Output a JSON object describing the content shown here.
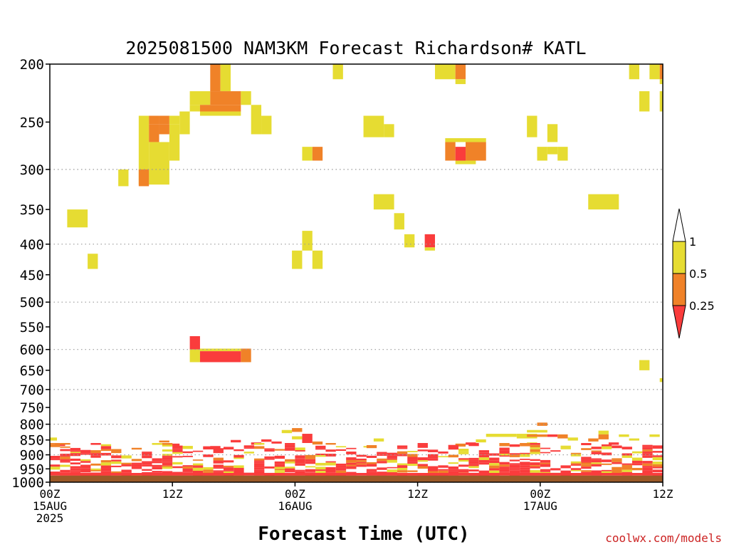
{
  "chart_data": {
    "type": "heatmap",
    "title": "2025081500 NAM3KM Forecast Richardson# KATL",
    "xlabel": "Forecast Time (UTC)",
    "ylabel": "",
    "credit": "coolwx.com/models",
    "x_unit": "forecast hour",
    "xlim": [
      0,
      60
    ],
    "y_unit": "hPa",
    "ylim": [
      1000,
      200
    ],
    "y_scale": "log",
    "y_ticks": [
      200,
      250,
      300,
      350,
      400,
      450,
      500,
      550,
      600,
      650,
      700,
      750,
      800,
      850,
      900,
      950,
      1000
    ],
    "grid_levels": [
      300,
      400,
      500,
      600,
      700,
      800,
      900,
      1000
    ],
    "x_ticks": [
      {
        "hour": 0,
        "lines": [
          "00Z",
          "15AUG",
          "2025"
        ]
      },
      {
        "hour": 12,
        "lines": [
          "12Z"
        ]
      },
      {
        "hour": 24,
        "lines": [
          "00Z",
          "16AUG"
        ]
      },
      {
        "hour": 36,
        "lines": [
          "12Z"
        ]
      },
      {
        "hour": 48,
        "lines": [
          "00Z",
          "17AUG"
        ]
      },
      {
        "hour": 60,
        "lines": [
          "12Z"
        ]
      }
    ],
    "colorbar": {
      "labels": [
        "1",
        "0.5",
        "0.25"
      ],
      "colors": {
        "above_1": "#ffffff",
        "0.5-1": "#e6dc32",
        "0.25-0.5": "#f08228",
        "below_0.25": "#fa3c3c"
      },
      "placement": "right"
    },
    "colors": {
      "yellow": "#e6dc32",
      "orange": "#f08228",
      "red": "#fa3c3c",
      "ground": "#9b5a28"
    },
    "ground_level_hpa": 975,
    "cells": [
      {
        "t0": 15.7,
        "t1": 16.7,
        "p0": 200,
        "p1": 222,
        "c": "orange"
      },
      {
        "t0": 16.7,
        "t1": 17.7,
        "p0": 200,
        "p1": 222,
        "c": "yellow"
      },
      {
        "t0": 27.7,
        "t1": 28.7,
        "p0": 200,
        "p1": 212,
        "c": "yellow"
      },
      {
        "t0": 37.7,
        "t1": 39.7,
        "p0": 200,
        "p1": 212,
        "c": "yellow"
      },
      {
        "t0": 39.7,
        "t1": 40.7,
        "p0": 200,
        "p1": 212,
        "c": "orange"
      },
      {
        "t0": 39.7,
        "t1": 40.7,
        "p0": 212,
        "p1": 216,
        "c": "yellow"
      },
      {
        "t0": 56.7,
        "t1": 57.7,
        "p0": 200,
        "p1": 212,
        "c": "yellow"
      },
      {
        "t0": 58.7,
        "t1": 59.7,
        "p0": 200,
        "p1": 212,
        "c": "yellow"
      },
      {
        "t0": 59.7,
        "t1": 60,
        "p0": 200,
        "p1": 212,
        "c": "orange"
      },
      {
        "t0": 59.7,
        "t1": 60,
        "p0": 212,
        "p1": 216,
        "c": "yellow"
      },
      {
        "t0": 13.7,
        "t1": 15.7,
        "p0": 222,
        "p1": 234,
        "c": "yellow"
      },
      {
        "t0": 15.7,
        "t1": 18.7,
        "p0": 222,
        "p1": 234,
        "c": "orange"
      },
      {
        "t0": 18.7,
        "t1": 19.7,
        "p0": 222,
        "p1": 234,
        "c": "yellow"
      },
      {
        "t0": 13.7,
        "t1": 14.7,
        "p0": 234,
        "p1": 240,
        "c": "yellow"
      },
      {
        "t0": 14.7,
        "t1": 17.7,
        "p0": 234,
        "p1": 240,
        "c": "orange"
      },
      {
        "t0": 17.7,
        "t1": 18.7,
        "p0": 234,
        "p1": 240,
        "c": "orange"
      },
      {
        "t0": 14.7,
        "t1": 18.7,
        "p0": 240,
        "p1": 244,
        "c": "yellow"
      },
      {
        "t0": 57.7,
        "t1": 58.7,
        "p0": 222,
        "p1": 240,
        "c": "yellow"
      },
      {
        "t0": 59.7,
        "t1": 60,
        "p0": 222,
        "p1": 240,
        "c": "yellow"
      },
      {
        "t0": 12.7,
        "t1": 13.7,
        "p0": 240,
        "p1": 262,
        "c": "yellow"
      },
      {
        "t0": 19.7,
        "t1": 20.7,
        "p0": 234,
        "p1": 262,
        "c": "yellow"
      },
      {
        "t0": 20.7,
        "t1": 21.7,
        "p0": 244,
        "p1": 262,
        "c": "yellow"
      },
      {
        "t0": 8.7,
        "t1": 9.7,
        "p0": 244,
        "p1": 318,
        "c": "yellow"
      },
      {
        "t0": 9.7,
        "t1": 10.7,
        "p0": 244,
        "p1": 252,
        "c": "orange"
      },
      {
        "t0": 10.7,
        "t1": 11.7,
        "p0": 244,
        "p1": 252,
        "c": "orange"
      },
      {
        "t0": 11.7,
        "t1": 12.7,
        "p0": 252,
        "p1": 262,
        "c": "yellow"
      },
      {
        "t0": 9.7,
        "t1": 10.7,
        "p0": 252,
        "p1": 270,
        "c": "orange"
      },
      {
        "t0": 10.7,
        "t1": 11.7,
        "p0": 252,
        "p1": 262,
        "c": "orange"
      },
      {
        "t0": 11.7,
        "t1": 12.7,
        "p0": 244,
        "p1": 252,
        "c": "yellow"
      },
      {
        "t0": 9.7,
        "t1": 11.7,
        "p0": 270,
        "p1": 318,
        "c": "yellow"
      },
      {
        "t0": 11.7,
        "t1": 12.7,
        "p0": 262,
        "p1": 290,
        "c": "yellow"
      },
      {
        "t0": 8.7,
        "t1": 9.7,
        "p0": 300,
        "p1": 320,
        "c": "orange"
      },
      {
        "t0": 6.7,
        "t1": 7.7,
        "p0": 300,
        "p1": 320,
        "c": "yellow"
      },
      {
        "t0": 30.7,
        "t1": 32.7,
        "p0": 244,
        "p1": 265,
        "c": "yellow"
      },
      {
        "t0": 32.7,
        "t1": 33.7,
        "p0": 252,
        "p1": 265,
        "c": "yellow"
      },
      {
        "t0": 46.7,
        "t1": 47.7,
        "p0": 244,
        "p1": 265,
        "c": "yellow"
      },
      {
        "t0": 48.7,
        "t1": 49.7,
        "p0": 252,
        "p1": 270,
        "c": "yellow"
      },
      {
        "t0": 47.7,
        "t1": 48.7,
        "p0": 275,
        "p1": 290,
        "c": "yellow"
      },
      {
        "t0": 48.7,
        "t1": 49.7,
        "p0": 275,
        "p1": 283,
        "c": "yellow"
      },
      {
        "t0": 49.7,
        "t1": 50.7,
        "p0": 275,
        "p1": 290,
        "c": "yellow"
      },
      {
        "t0": 24.7,
        "t1": 25.7,
        "p0": 275,
        "p1": 290,
        "c": "yellow"
      },
      {
        "t0": 25.7,
        "t1": 26.7,
        "p0": 275,
        "p1": 290,
        "c": "orange"
      },
      {
        "t0": 38.7,
        "t1": 39.7,
        "p0": 270,
        "p1": 290,
        "c": "orange"
      },
      {
        "t0": 39.7,
        "t1": 40.7,
        "p0": 275,
        "p1": 290,
        "c": "red"
      },
      {
        "t0": 40.7,
        "t1": 42.7,
        "p0": 270,
        "p1": 290,
        "c": "orange"
      },
      {
        "t0": 38.7,
        "t1": 42.7,
        "p0": 266,
        "p1": 270,
        "c": "yellow"
      },
      {
        "t0": 39.7,
        "t1": 41.7,
        "p0": 290,
        "p1": 294,
        "c": "yellow"
      },
      {
        "t0": 31.7,
        "t1": 33.7,
        "p0": 330,
        "p1": 350,
        "c": "yellow"
      },
      {
        "t0": 52.7,
        "t1": 55.7,
        "p0": 330,
        "p1": 350,
        "c": "yellow"
      },
      {
        "t0": 1.7,
        "t1": 3.7,
        "p0": 350,
        "p1": 375,
        "c": "yellow"
      },
      {
        "t0": 33.7,
        "t1": 34.7,
        "p0": 355,
        "p1": 378,
        "c": "yellow"
      },
      {
        "t0": 34.7,
        "t1": 35.7,
        "p0": 385,
        "p1": 405,
        "c": "yellow"
      },
      {
        "t0": 36.7,
        "t1": 37.7,
        "p0": 385,
        "p1": 405,
        "c": "red"
      },
      {
        "t0": 36.7,
        "t1": 37.7,
        "p0": 405,
        "p1": 410,
        "c": "yellow"
      },
      {
        "t0": 24.7,
        "t1": 25.7,
        "p0": 380,
        "p1": 410,
        "c": "yellow"
      },
      {
        "t0": 23.7,
        "t1": 24.7,
        "p0": 410,
        "p1": 440,
        "c": "yellow"
      },
      {
        "t0": 25.7,
        "t1": 26.7,
        "p0": 410,
        "p1": 440,
        "c": "yellow"
      },
      {
        "t0": 3.7,
        "t1": 4.7,
        "p0": 415,
        "p1": 440,
        "c": "yellow"
      },
      {
        "t0": 13.7,
        "t1": 14.7,
        "p0": 570,
        "p1": 600,
        "c": "red"
      },
      {
        "t0": 13.7,
        "t1": 14.7,
        "p0": 600,
        "p1": 630,
        "c": "yellow"
      },
      {
        "t0": 14.7,
        "t1": 18.7,
        "p0": 598,
        "p1": 604,
        "c": "yellow"
      },
      {
        "t0": 14.7,
        "t1": 18.7,
        "p0": 604,
        "p1": 630,
        "c": "red"
      },
      {
        "t0": 18.7,
        "t1": 19.7,
        "p0": 598,
        "p1": 630,
        "c": "orange"
      },
      {
        "t0": 57.7,
        "t1": 58.7,
        "p0": 625,
        "p1": 650,
        "c": "yellow"
      },
      {
        "t0": 59.7,
        "t1": 60,
        "p0": 670,
        "p1": 680,
        "c": "yellow"
      },
      {
        "t0": 22.7,
        "t1": 23.7,
        "p0": 818,
        "p1": 828,
        "c": "yellow"
      },
      {
        "t0": 23.7,
        "t1": 24.7,
        "p0": 812,
        "p1": 824,
        "c": "orange"
      },
      {
        "t0": 24.7,
        "t1": 25.7,
        "p0": 830,
        "p1": 860,
        "c": "red"
      },
      {
        "t0": 23.7,
        "t1": 24.7,
        "p0": 838,
        "p1": 848,
        "c": "yellow"
      },
      {
        "t0": 25.7,
        "t1": 26.7,
        "p0": 855,
        "p1": 865,
        "c": "orange"
      },
      {
        "t0": 31.7,
        "t1": 32.7,
        "p0": 845,
        "p1": 855,
        "c": "yellow"
      },
      {
        "t0": 30.7,
        "t1": 31.7,
        "p0": 870,
        "p1": 875,
        "c": "yellow"
      },
      {
        "t0": 41.7,
        "t1": 42.7,
        "p0": 848,
        "p1": 858,
        "c": "yellow"
      },
      {
        "t0": 40.7,
        "t1": 41.7,
        "p0": 858,
        "p1": 866,
        "c": "red"
      },
      {
        "t0": 39.7,
        "t1": 40.7,
        "p0": 862,
        "p1": 872,
        "c": "orange"
      },
      {
        "t0": 42.7,
        "t1": 45.7,
        "p0": 830,
        "p1": 840,
        "c": "yellow"
      },
      {
        "t0": 45.7,
        "t1": 47.7,
        "p0": 830,
        "p1": 845,
        "c": "yellow"
      },
      {
        "t0": 47.7,
        "t1": 48.7,
        "p0": 795,
        "p1": 805,
        "c": "orange"
      },
      {
        "t0": 46.7,
        "t1": 47.7,
        "p0": 818,
        "p1": 826,
        "c": "yellow"
      },
      {
        "t0": 47.7,
        "t1": 48.7,
        "p0": 818,
        "p1": 826,
        "c": "yellow"
      },
      {
        "t0": 46.7,
        "t1": 48.7,
        "p0": 832,
        "p1": 840,
        "c": "orange"
      },
      {
        "t0": 48.7,
        "t1": 49.7,
        "p0": 832,
        "p1": 840,
        "c": "red"
      },
      {
        "t0": 49.7,
        "t1": 50.7,
        "p0": 832,
        "p1": 845,
        "c": "orange"
      },
      {
        "t0": 46.7,
        "t1": 47.7,
        "p0": 858,
        "p1": 864,
        "c": "yellow"
      },
      {
        "t0": 50.7,
        "t1": 51.7,
        "p0": 842,
        "p1": 852,
        "c": "yellow"
      },
      {
        "t0": 52.7,
        "t1": 53.7,
        "p0": 845,
        "p1": 855,
        "c": "orange"
      },
      {
        "t0": 53.7,
        "t1": 54.7,
        "p0": 820,
        "p1": 832,
        "c": "yellow"
      },
      {
        "t0": 53.7,
        "t1": 54.7,
        "p0": 832,
        "p1": 848,
        "c": "orange"
      },
      {
        "t0": 54.7,
        "t1": 55.7,
        "p0": 858,
        "p1": 866,
        "c": "red"
      },
      {
        "t0": 55.7,
        "t1": 56.7,
        "p0": 832,
        "p1": 840,
        "c": "yellow"
      },
      {
        "t0": 56.7,
        "t1": 57.7,
        "p0": 845,
        "p1": 852,
        "c": "yellow"
      },
      {
        "t0": 58.7,
        "t1": 59.7,
        "p0": 832,
        "p1": 840,
        "c": "yellow"
      },
      {
        "t0": 0,
        "t1": 0.7,
        "p0": 842,
        "p1": 852,
        "c": "yellow"
      },
      {
        "t0": 0.5,
        "t1": 1.5,
        "p0": 862,
        "p1": 870,
        "c": "red"
      },
      {
        "t0": 10.7,
        "t1": 11.7,
        "p0": 852,
        "p1": 858,
        "c": "orange"
      },
      {
        "t0": 11.7,
        "t1": 12.7,
        "p0": 862,
        "p1": 870,
        "c": "red"
      },
      {
        "t0": 17.7,
        "t1": 18.7,
        "p0": 850,
        "p1": 858,
        "c": "red"
      },
      {
        "t0": 20.7,
        "t1": 21.7,
        "p0": 848,
        "p1": 856,
        "c": "red"
      },
      {
        "t0": 19.7,
        "t1": 20.7,
        "p0": 858,
        "p1": 866,
        "c": "red"
      },
      {
        "t0": 21.7,
        "t1": 22.7,
        "p0": 855,
        "p1": 862,
        "c": "red"
      },
      {
        "t0": 15.7,
        "t1": 16.7,
        "p0": 870,
        "p1": 880,
        "c": "red"
      }
    ],
    "dense_region": {
      "t0": 0,
      "t1": 60,
      "p_top": 860,
      "p_bottom": 975,
      "seed": 17
    },
    "yellow_glyph_at_t": 29.7,
    "white_tick_at_t": 59.7
  }
}
